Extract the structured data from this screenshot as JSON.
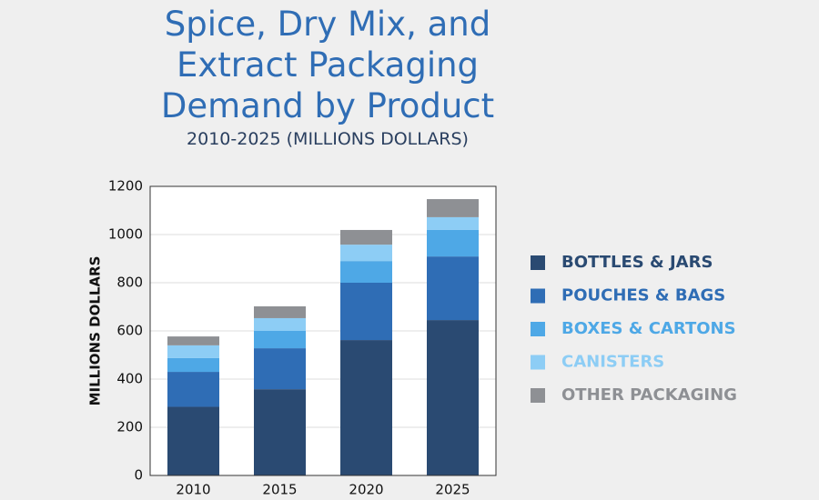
{
  "chart_data": {
    "type": "stacked-bar",
    "title": "Spice, Dry Mix, and Extract Packaging Demand by Product",
    "subtitle": "2010-2025 (MILLIONS DOLLARS)",
    "y_label": "MILLIONS DOLLARS",
    "categories": [
      "2010",
      "2015",
      "2020",
      "2025"
    ],
    "series": [
      {
        "name": "BOTTLES & JARS",
        "color": "#2a4a72",
        "values": [
          285,
          358,
          562,
          645
        ]
      },
      {
        "name": "POUCHES & BAGS",
        "color": "#2f6db5",
        "values": [
          145,
          170,
          238,
          264
        ]
      },
      {
        "name": "BOXES & CARTONS",
        "color": "#4ea8e6",
        "values": [
          57,
          72,
          90,
          110
        ]
      },
      {
        "name": "CANISTERS",
        "color": "#8dcdf5",
        "values": [
          53,
          53,
          68,
          53
        ]
      },
      {
        "name": "OTHER PACKAGING",
        "color": "#8e9094",
        "values": [
          37,
          49,
          61,
          75
        ]
      }
    ],
    "ylim": [
      0,
      1200
    ],
    "yticks": [
      0,
      200,
      400,
      600,
      800,
      1000,
      1200
    ],
    "grid": true,
    "legend": "right"
  }
}
